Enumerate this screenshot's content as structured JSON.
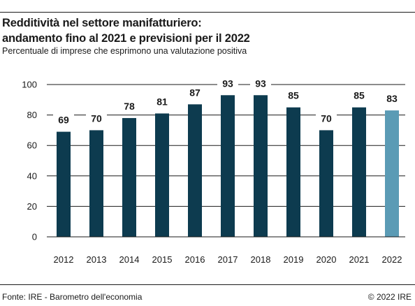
{
  "header": {
    "title_line1": "Redditività nel settore manifatturiero:",
    "title_line2": "andamento fino al 2021 e previsioni per il 2022",
    "subtitle": "Percentuale di imprese che esprimono una valutazione positiva"
  },
  "footer": {
    "source": "Fonte: IRE - Barometro dell'economia",
    "copyright": "© 2022 IRE"
  },
  "colors": {
    "actual": "#0d3b4f",
    "forecast": "#5b9bb5",
    "grid": "#1a1a1a"
  },
  "chart_data": {
    "type": "bar",
    "categories": [
      "2012",
      "2013",
      "2014",
      "2015",
      "2016",
      "2017",
      "2018",
      "2019",
      "2020",
      "2021",
      "2022"
    ],
    "values": [
      69,
      70,
      78,
      81,
      87,
      93,
      93,
      85,
      70,
      85,
      83
    ],
    "forecast_categories": [
      "2022"
    ],
    "ylim": [
      0,
      100
    ],
    "yticks": [
      0,
      20,
      40,
      60,
      80,
      100
    ],
    "grid": true
  }
}
